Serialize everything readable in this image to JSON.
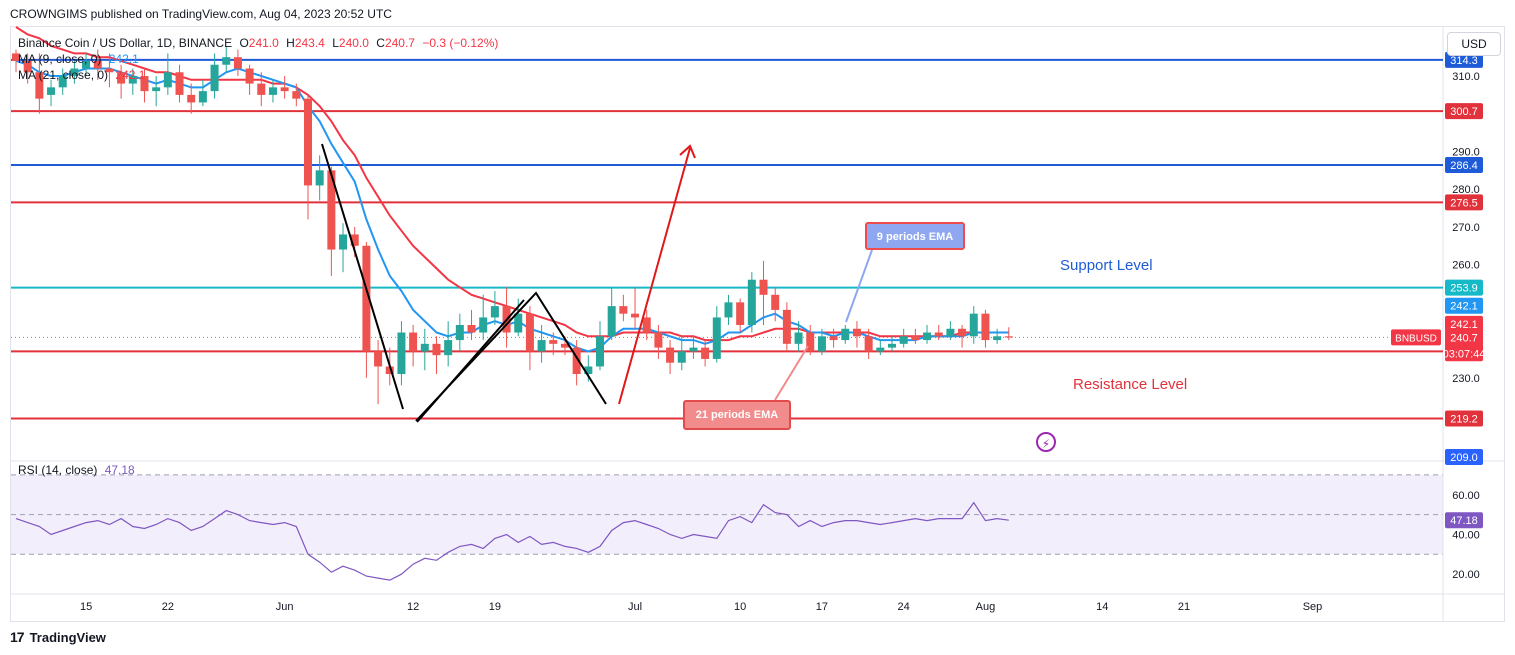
{
  "publisher": "CROWNGIMS published on TradingView.com, Aug 04, 2023 20:52 UTC",
  "legend": {
    "symbol": "Binance Coin / US Dollar, 1D, BINANCE",
    "o_label": "O",
    "o": "241.0",
    "h_label": "H",
    "h": "243.4",
    "l_label": "L",
    "l": "240.0",
    "c_label": "C",
    "c": "240.7",
    "change": "−0.3 (−0.12%)",
    "ma9_label": "MA (9, close, 0)",
    "ma9_value": "242.1",
    "ma21_label": "MA (21, close, 0)",
    "ma21_value": "242.1",
    "rsi_label": "RSI (14, close)",
    "rsi_value": "47.18"
  },
  "currency_button": "USD",
  "annotations": {
    "ema9": "9 periods EMA",
    "ema21": "21 periods EMA",
    "support": "Support Level",
    "resistance": "Resistance Level"
  },
  "footer": {
    "logo": "17",
    "brand": "TradingView"
  },
  "colors": {
    "up": "#26a69a",
    "down": "#ef5350",
    "ema9": "#2196f3",
    "ema21": "#f23645",
    "support_blue": "#1e5bd8",
    "resistance_red": "#e1323c",
    "cyan": "#16b9c8",
    "rsi": "#7e57c2"
  },
  "chart_data": {
    "type": "candlestick",
    "symbol": "BNBUSD",
    "ylim": [
      209,
      323
    ],
    "y_ticks": [
      230,
      250,
      260,
      270,
      280,
      290,
      310,
      320
    ],
    "x_labels": [
      {
        "t": "15",
        "i": 6
      },
      {
        "t": "22",
        "i": 13
      },
      {
        "t": "Jun",
        "i": 23
      },
      {
        "t": "12",
        "i": 34
      },
      {
        "t": "19",
        "i": 41
      },
      {
        "t": "Jul",
        "i": 53
      },
      {
        "t": "10",
        "i": 62
      },
      {
        "t": "17",
        "i": 69
      },
      {
        "t": "24",
        "i": 76
      },
      {
        "t": "Aug",
        "i": 83
      },
      {
        "t": "14",
        "i": 93
      },
      {
        "t": "21",
        "i": 100
      },
      {
        "t": "Sep",
        "i": 111
      }
    ],
    "horizontal_lines": [
      {
        "value": 314.3,
        "label": "314.3",
        "color": "#1e5bd8"
      },
      {
        "value": 300.7,
        "label": "300.7",
        "color": "#e1323c"
      },
      {
        "value": 286.4,
        "label": "286.4",
        "color": "#1e5bd8"
      },
      {
        "value": 276.5,
        "label": "276.5",
        "color": "#e1323c"
      },
      {
        "value": 253.9,
        "label": "253.9",
        "color": "#16b9c8"
      },
      {
        "value": 237.0,
        "label": "237.0",
        "color": "#e1323c"
      },
      {
        "value": 219.2,
        "label": "219.2",
        "color": "#e1323c"
      }
    ],
    "price_badges": [
      {
        "value": 249.1,
        "label": "242.1",
        "color": "#2196f3"
      },
      {
        "value": 244.3,
        "label": "242.1",
        "color": "#f23645"
      },
      {
        "value": 240.7,
        "label": "240.7",
        "color": "#f23645"
      },
      {
        "value": 236.5,
        "label": "03:07:44",
        "color": "#f23645"
      },
      {
        "value": 209.0,
        "label": "209.0",
        "color": "#2962ff"
      }
    ],
    "symbol_tag": "BNBUSD",
    "candles": [
      [
        316,
        314,
        317,
        311
      ],
      [
        314,
        311,
        316,
        308
      ],
      [
        311,
        304,
        316,
        300
      ],
      [
        305,
        307,
        309,
        302
      ],
      [
        307,
        310,
        312,
        305
      ],
      [
        310,
        312,
        314,
        308
      ],
      [
        312,
        314,
        316,
        310
      ],
      [
        314,
        312,
        317,
        309
      ],
      [
        312,
        311,
        316,
        307
      ],
      [
        311,
        308,
        313,
        304
      ],
      [
        308,
        310,
        312,
        305
      ],
      [
        310,
        306,
        312,
        303
      ],
      [
        306,
        307,
        310,
        302
      ],
      [
        307,
        311,
        316,
        305
      ],
      [
        311,
        305,
        313,
        303
      ],
      [
        305,
        303,
        308,
        300
      ],
      [
        303,
        306,
        309,
        302
      ],
      [
        306,
        313,
        316,
        304
      ],
      [
        313,
        315,
        318,
        311
      ],
      [
        315,
        312,
        317,
        310
      ],
      [
        312,
        308,
        313,
        305
      ],
      [
        308,
        305,
        311,
        302
      ],
      [
        305,
        307,
        309,
        303
      ],
      [
        307,
        306,
        310,
        304
      ],
      [
        306,
        304,
        308,
        302
      ],
      [
        304,
        281,
        305,
        272
      ],
      [
        281,
        285,
        289,
        277
      ],
      [
        285,
        264,
        286,
        257
      ],
      [
        264,
        268,
        271,
        258
      ],
      [
        268,
        265,
        270,
        262
      ],
      [
        265,
        237,
        266,
        230
      ],
      [
        237,
        233,
        240,
        223
      ],
      [
        233,
        231,
        238,
        228
      ],
      [
        231,
        242,
        245,
        228
      ],
      [
        242,
        237,
        244,
        233
      ],
      [
        237,
        239,
        243,
        232
      ],
      [
        239,
        236,
        241,
        231
      ],
      [
        236,
        240,
        245,
        233
      ],
      [
        240,
        244,
        247,
        237
      ],
      [
        244,
        242,
        248,
        240
      ],
      [
        242,
        246,
        252,
        240
      ],
      [
        246,
        249,
        253,
        244
      ],
      [
        249,
        242,
        254,
        238
      ],
      [
        242,
        247,
        251,
        241
      ],
      [
        247,
        237,
        249,
        232
      ],
      [
        237,
        240,
        244,
        234
      ],
      [
        240,
        239,
        242,
        236
      ],
      [
        239,
        238,
        241,
        236
      ],
      [
        238,
        231,
        240,
        228
      ],
      [
        231,
        233,
        236,
        229
      ],
      [
        233,
        241,
        245,
        232
      ],
      [
        241,
        249,
        254,
        240
      ],
      [
        249,
        247,
        252,
        245
      ],
      [
        247,
        246,
        254,
        243
      ],
      [
        246,
        242,
        248,
        240
      ],
      [
        242,
        238,
        244,
        235
      ],
      [
        238,
        234,
        240,
        231
      ],
      [
        234,
        237,
        241,
        232
      ],
      [
        237,
        238,
        241,
        235
      ],
      [
        238,
        235,
        240,
        233
      ],
      [
        235,
        246,
        249,
        234
      ],
      [
        246,
        250,
        252,
        244
      ],
      [
        250,
        244,
        251,
        242
      ],
      [
        244,
        256,
        258,
        242
      ],
      [
        256,
        252,
        261,
        244
      ],
      [
        252,
        248,
        254,
        245
      ],
      [
        248,
        239,
        250,
        237
      ],
      [
        239,
        242,
        245,
        237
      ],
      [
        242,
        237,
        244,
        236
      ],
      [
        237,
        241,
        243,
        236
      ],
      [
        241,
        240,
        243,
        238
      ],
      [
        240,
        243,
        244,
        239
      ],
      [
        243,
        241,
        245,
        238
      ],
      [
        241,
        237,
        243,
        235
      ],
      [
        237,
        238,
        240,
        236
      ],
      [
        238,
        239,
        241,
        237
      ],
      [
        239,
        241,
        243,
        238
      ],
      [
        241,
        240,
        243,
        239
      ],
      [
        240,
        242,
        244,
        239
      ],
      [
        242,
        241,
        244,
        240
      ],
      [
        241,
        243,
        245,
        240
      ],
      [
        243,
        241,
        244,
        238
      ],
      [
        241,
        247,
        249,
        239
      ],
      [
        247,
        240,
        248,
        238
      ],
      [
        240,
        241,
        243,
        239
      ],
      [
        241,
        240.7,
        243.4,
        240
      ]
    ],
    "ema9": [
      314,
      313,
      311,
      310,
      310,
      311,
      312,
      312,
      312,
      311,
      310,
      309,
      308,
      309,
      308,
      307,
      307,
      309,
      311,
      312,
      311,
      310,
      309,
      308,
      307,
      302,
      298,
      292,
      287,
      282,
      272,
      264,
      257,
      253,
      248,
      245,
      242,
      241,
      242,
      242,
      244,
      245,
      244,
      245,
      243,
      242,
      241,
      240,
      238,
      237,
      238,
      241,
      243,
      243,
      243,
      242,
      241,
      240,
      240,
      239,
      240,
      242,
      242,
      244,
      246,
      247,
      245,
      244,
      242,
      242,
      241,
      242,
      242,
      241,
      240,
      240,
      240,
      240,
      241,
      241,
      241,
      241,
      242,
      242,
      242,
      242
    ],
    "ema21": [
      323,
      321,
      320,
      318,
      317,
      316,
      316,
      315,
      315,
      314,
      313,
      312,
      311,
      311,
      310,
      309,
      309,
      309,
      309,
      309,
      309,
      309,
      308,
      308,
      307,
      305,
      302,
      298,
      293,
      289,
      283,
      278,
      273,
      269,
      265,
      262,
      259,
      256,
      254,
      252,
      251,
      250,
      249,
      248,
      247,
      246,
      245,
      244,
      242,
      241,
      241,
      241,
      242,
      242,
      242,
      242,
      242,
      241,
      241,
      240,
      240,
      240,
      241,
      241,
      242,
      243,
      243,
      243,
      242,
      242,
      242,
      242,
      242,
      242,
      241,
      241,
      241,
      241,
      241,
      241,
      241,
      242,
      242,
      242,
      242,
      242
    ],
    "rsi": {
      "ylim": [
        10,
        75
      ],
      "ticks": [
        20,
        40,
        60
      ],
      "band": [
        30,
        70
      ],
      "middle": 50,
      "values": [
        48,
        46,
        44,
        40,
        42,
        44,
        46,
        47,
        45,
        48,
        44,
        43,
        45,
        48,
        46,
        42,
        44,
        48,
        52,
        50,
        47,
        46,
        45,
        46,
        44,
        30,
        26,
        21,
        24,
        22,
        19,
        18,
        17,
        20,
        25,
        28,
        27,
        31,
        34,
        35,
        33,
        38,
        40,
        36,
        39,
        35,
        36,
        34,
        33,
        31,
        34,
        42,
        46,
        47,
        45,
        43,
        40,
        38,
        40,
        39,
        38,
        47,
        49,
        46,
        55,
        51,
        50,
        44,
        47,
        44,
        46,
        47,
        47,
        46,
        45,
        46,
        47,
        48,
        47,
        48,
        48,
        48,
        56,
        47,
        48,
        47.18
      ]
    }
  }
}
